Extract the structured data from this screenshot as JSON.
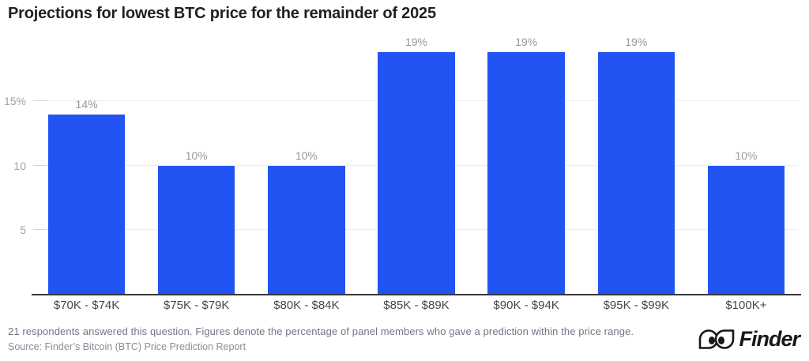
{
  "title": "Projections for lowest BTC price for the remainder of 2025",
  "chart_data": {
    "type": "bar",
    "categories": [
      "$70K - $74K",
      "$75K - $79K",
      "$80K - $84K",
      "$85K - $89K",
      "$90K - $94K",
      "$95K - $99K",
      "$100K+"
    ],
    "values": [
      14,
      10,
      10,
      19,
      19,
      19,
      10
    ],
    "value_labels": [
      "14%",
      "10%",
      "10%",
      "19%",
      "19%",
      "19%",
      "10%"
    ],
    "title": "Projections for lowest BTC price for the remainder of 2025",
    "xlabel": "",
    "ylabel": "",
    "ylim": [
      0,
      20.1
    ],
    "yticks": [
      {
        "value": 5,
        "label": "5"
      },
      {
        "value": 10,
        "label": "10"
      },
      {
        "value": 15,
        "label": "15%"
      }
    ],
    "grid": true,
    "legend": false,
    "bar_color": "#2254f4"
  },
  "footer": {
    "note": "21 respondents answered this question. Figures denote the percentage of panel members who gave a prediction within the price range.",
    "source": "Source: Finder’s Bitcoin (BTC) Price Prediction Report"
  },
  "brand": {
    "icon": "finder-eyes-icon",
    "wordmark": "Finder"
  }
}
